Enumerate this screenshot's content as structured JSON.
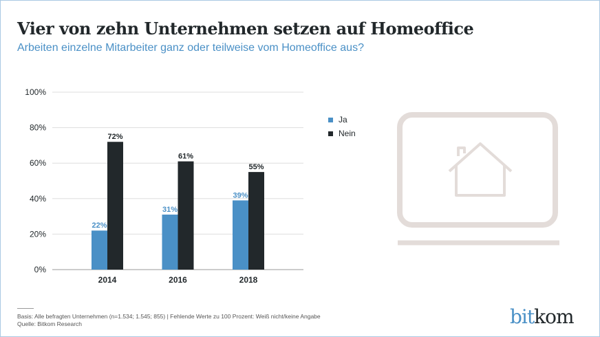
{
  "title": "Vier von zehn Unternehmen setzen auf Homeoffice",
  "subtitle": "Arbeiten einzelne Mitarbeiter ganz oder teilweise vom Homeoffice aus?",
  "chart_data": {
    "type": "bar",
    "categories": [
      "2014",
      "2016",
      "2018"
    ],
    "series": [
      {
        "name": "Ja",
        "values": [
          22,
          31,
          39
        ],
        "labels": [
          "22%",
          "31%",
          "39%"
        ],
        "color": "#4a90c6"
      },
      {
        "name": "Nein",
        "values": [
          72,
          61,
          55
        ],
        "labels": [
          "72%",
          "61%",
          "55%"
        ],
        "color": "#22282b"
      }
    ],
    "ylim": [
      0,
      100
    ],
    "yticks": [
      "0%",
      "20%",
      "40%",
      "60%",
      "80%",
      "100%"
    ],
    "grid": true,
    "legend": "right"
  },
  "footer": {
    "basis": "Basis: Alle befragten Unternehmen (n=1.534; 1.545; 855) | Fehlende Werte zu 100 Prozent: Weiß nicht/keine Angabe",
    "source": "Quelle: Bitkom Research"
  },
  "logo": {
    "part1": "bit",
    "part2": "kom",
    "color1": "#4a90c6",
    "color2": "#22282b"
  },
  "icon": "laptop-home-icon"
}
